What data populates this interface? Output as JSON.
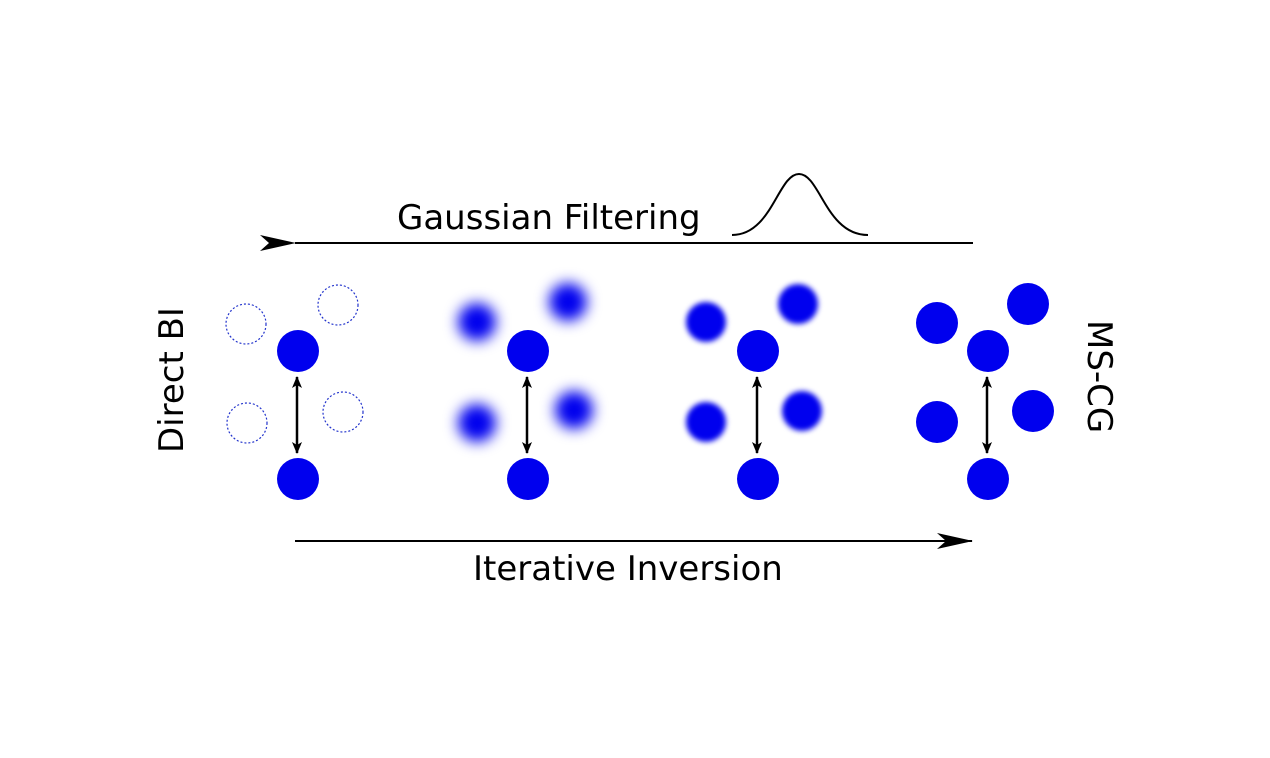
{
  "top_label": "Gaussian Filtering",
  "bottom_label": "Iterative Inversion",
  "left_label": "Direct BI",
  "right_label": "MS-CG",
  "colors": {
    "particle": "#0000ee",
    "ring": "#2233cc",
    "ink": "#000000",
    "background": "#ffffff"
  },
  "stages": [
    {
      "name": "direct-bi",
      "blur_level": "none",
      "neighbors": "dotted-outline"
    },
    {
      "name": "strong-blur",
      "blur_level": "strong",
      "neighbors": "blurred"
    },
    {
      "name": "mild-blur",
      "blur_level": "mild",
      "neighbors": "blurred"
    },
    {
      "name": "ms-cg",
      "blur_level": "none",
      "neighbors": "solid"
    }
  ],
  "icons": {
    "top_arrow": "left-arrow-icon",
    "bottom_arrow": "right-arrow-icon",
    "bond_arrow": "double-headed-arrow-icon",
    "gaussian": "gaussian-curve-icon"
  }
}
